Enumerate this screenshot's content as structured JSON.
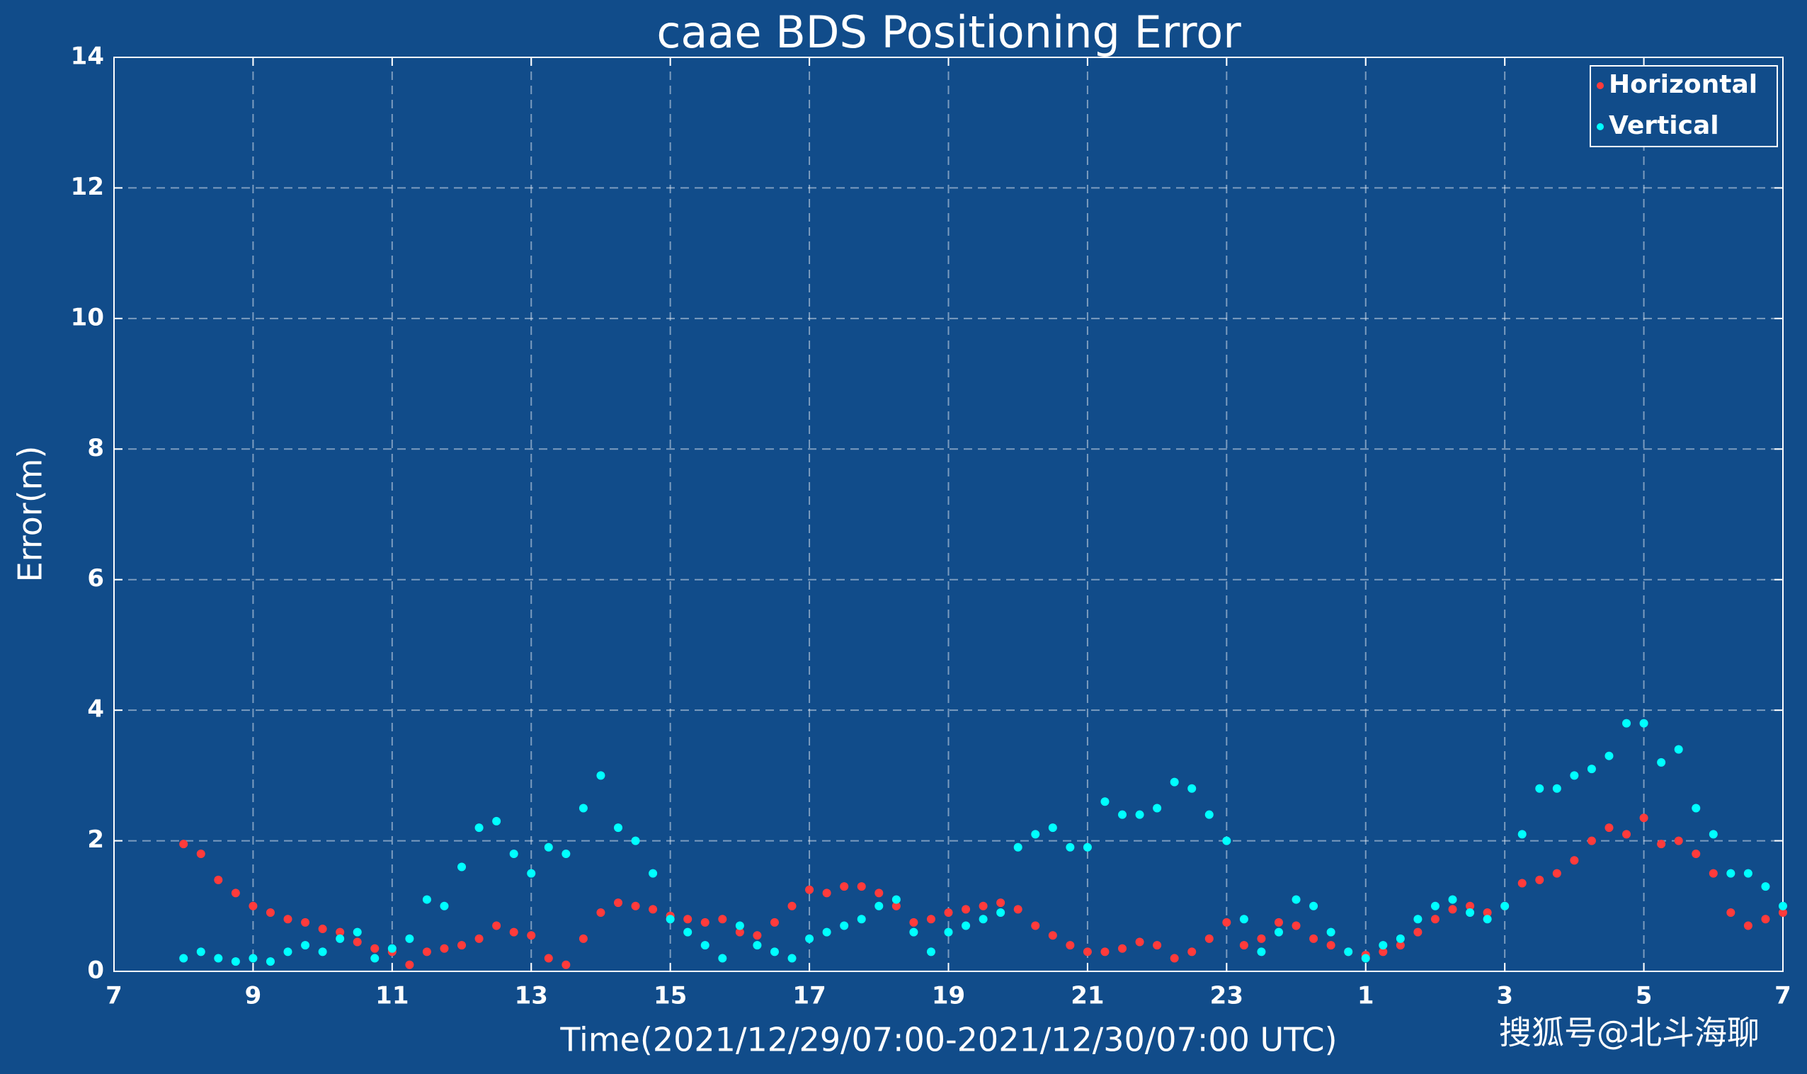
{
  "chart_data": {
    "type": "scatter",
    "title": "caae BDS Positioning Error",
    "xlabel": "Time(2021/12/29/07:00-2021/12/30/07:00 UTC)",
    "ylabel": "Error(m)",
    "watermark": "搜狐号@北斗海聊",
    "xlim": [
      7,
      31
    ],
    "ylim": [
      0,
      14
    ],
    "xticks": [
      7,
      9,
      11,
      13,
      15,
      17,
      19,
      21,
      23,
      {
        "value": 25,
        "label": "1"
      },
      {
        "value": 27,
        "label": "3"
      },
      {
        "value": 29,
        "label": "5"
      },
      {
        "value": 31,
        "label": "7"
      }
    ],
    "yticks": [
      0,
      2,
      4,
      6,
      8,
      10,
      12,
      14
    ],
    "grid": true,
    "legend": "upper right",
    "x": [
      8,
      8.25,
      8.5,
      8.75,
      9,
      9.25,
      9.5,
      9.75,
      10,
      10.25,
      10.5,
      10.75,
      11,
      11.25,
      11.5,
      11.75,
      12,
      12.25,
      12.5,
      12.75,
      13,
      13.25,
      13.5,
      13.75,
      14,
      14.25,
      14.5,
      14.75,
      15,
      15.25,
      15.5,
      15.75,
      16,
      16.25,
      16.5,
      16.75,
      17,
      17.25,
      17.5,
      17.75,
      18,
      18.25,
      18.5,
      18.75,
      19,
      19.25,
      19.5,
      19.75,
      20,
      20.25,
      20.5,
      20.75,
      21,
      21.25,
      21.5,
      21.75,
      22,
      22.25,
      22.5,
      22.75,
      23,
      23.25,
      23.5,
      23.75,
      24,
      24.25,
      24.5,
      24.75,
      25,
      25.25,
      25.5,
      25.75,
      26,
      26.25,
      26.5,
      26.75,
      27,
      27.25,
      27.5,
      27.75,
      28,
      28.25,
      28.5,
      28.75,
      29,
      29.25,
      29.5,
      29.75,
      30,
      30.25,
      30.5,
      30.75,
      31
    ],
    "series": [
      {
        "name": "Horizontal",
        "color": "#ff3b3b",
        "values": [
          1.95,
          1.8,
          1.4,
          1.2,
          1.0,
          0.9,
          0.8,
          0.75,
          0.65,
          0.6,
          0.45,
          0.35,
          0.3,
          0.1,
          0.3,
          0.35,
          0.4,
          0.5,
          0.7,
          0.6,
          0.55,
          0.2,
          0.1,
          0.5,
          0.9,
          1.05,
          1.0,
          0.95,
          0.85,
          0.8,
          0.75,
          0.8,
          0.6,
          0.55,
          0.75,
          1.0,
          1.25,
          1.2,
          1.3,
          1.3,
          1.2,
          1.0,
          0.75,
          0.8,
          0.9,
          0.95,
          1.0,
          1.05,
          0.95,
          0.7,
          0.55,
          0.4,
          0.3,
          0.3,
          0.35,
          0.45,
          0.4,
          0.2,
          0.3,
          0.5,
          0.75,
          0.4,
          0.5,
          0.75,
          0.7,
          0.5,
          0.4,
          0.3,
          0.25,
          0.3,
          0.4,
          0.6,
          0.8,
          0.95,
          1.0,
          0.9,
          1.0,
          1.35,
          1.4,
          1.5,
          1.7,
          2.0,
          2.2,
          2.1,
          2.35,
          1.95,
          2.0,
          1.8,
          1.5,
          0.9,
          0.7,
          0.8,
          0.9
        ]
      },
      {
        "name": "Vertical",
        "color": "#00ffff",
        "values": [
          0.2,
          0.3,
          0.2,
          0.15,
          0.2,
          0.15,
          0.3,
          0.4,
          0.3,
          0.5,
          0.6,
          0.2,
          0.35,
          0.5,
          1.1,
          1.0,
          1.6,
          2.2,
          2.3,
          1.8,
          1.5,
          1.9,
          1.8,
          2.5,
          3.0,
          2.2,
          2.0,
          1.5,
          0.8,
          0.6,
          0.4,
          0.2,
          0.7,
          0.4,
          0.3,
          0.2,
          0.5,
          0.6,
          0.7,
          0.8,
          1.0,
          1.1,
          0.6,
          0.3,
          0.6,
          0.7,
          0.8,
          0.9,
          1.9,
          2.1,
          2.2,
          1.9,
          1.9,
          2.6,
          2.4,
          2.4,
          2.5,
          2.9,
          2.8,
          2.4,
          2.0,
          0.8,
          0.3,
          0.6,
          1.1,
          1.0,
          0.6,
          0.3,
          0.2,
          0.4,
          0.5,
          0.8,
          1.0,
          1.1,
          0.9,
          0.8,
          1.0,
          2.1,
          2.8,
          2.8,
          3.0,
          3.1,
          3.3,
          3.8,
          3.8,
          3.2,
          3.4,
          2.5,
          2.1,
          1.5,
          1.5,
          1.3,
          1.0
        ]
      }
    ]
  }
}
